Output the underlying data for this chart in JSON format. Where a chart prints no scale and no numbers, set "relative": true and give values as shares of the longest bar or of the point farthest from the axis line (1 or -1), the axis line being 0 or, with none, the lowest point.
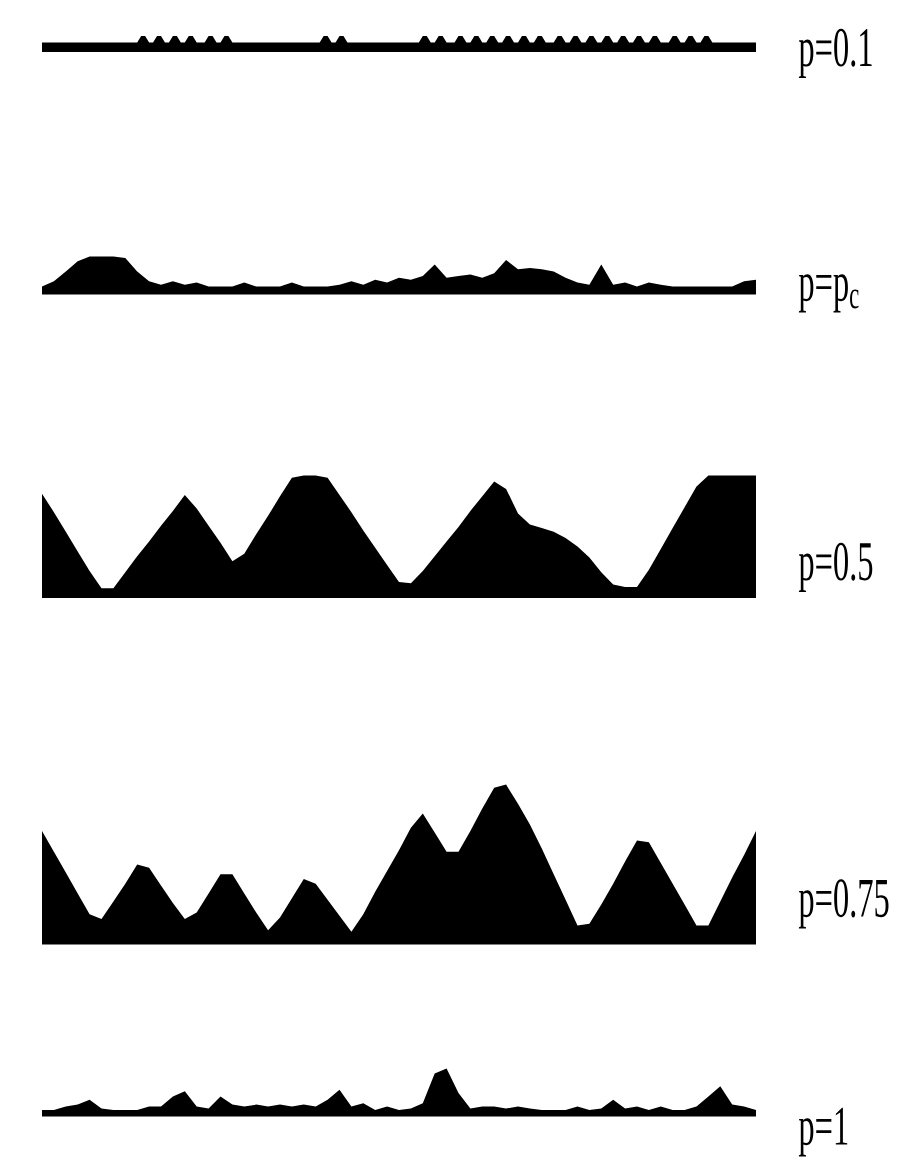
{
  "chart_data": [
    {
      "type": "area",
      "relative": true,
      "categories": [
        null,
        null,
        null,
        null,
        null,
        null,
        null,
        null,
        null,
        null,
        null,
        null,
        null,
        null,
        null,
        null,
        null,
        null,
        null,
        null,
        null,
        null,
        null,
        null,
        null,
        null,
        null,
        null,
        null,
        null,
        null,
        null,
        null,
        null,
        null,
        null,
        null,
        null,
        null,
        null,
        null,
        null,
        null,
        null,
        null,
        null,
        null,
        null,
        null,
        null,
        null,
        null,
        null,
        null,
        null,
        null,
        null,
        null,
        null,
        null,
        null,
        null,
        null,
        null,
        null,
        null,
        null,
        null,
        null,
        null,
        null,
        null,
        null,
        null,
        null,
        null,
        null,
        null,
        null,
        null,
        null,
        null,
        null,
        null,
        null,
        null,
        null,
        null,
        null,
        null,
        null,
        null,
        null,
        null,
        null,
        null,
        null,
        null,
        null,
        null,
        null,
        null,
        null,
        null,
        null,
        null,
        null,
        null,
        null,
        null,
        null,
        null,
        null,
        null,
        null,
        null,
        null,
        null,
        null,
        null,
        null,
        null,
        null,
        null,
        null,
        null,
        null,
        null,
        null,
        null,
        null,
        null,
        null,
        null,
        null,
        null,
        null,
        null,
        null,
        null,
        null,
        null,
        null,
        null,
        null,
        null,
        null,
        null,
        null,
        null,
        null,
        null,
        null,
        null,
        null,
        null,
        null,
        null,
        null,
        null,
        null,
        null,
        null,
        null,
        null,
        null,
        null,
        null,
        null,
        null,
        null,
        null,
        null,
        null,
        null,
        null,
        null,
        null,
        null,
        null,
        null
      ],
      "series": [
        {
          "name": "p=0.1",
          "color": "#000000",
          "values": [
            0.6,
            0.6,
            0.6,
            0.6,
            0.6,
            0.6,
            0.6,
            0.6,
            0.6,
            0.6,
            0.6,
            0.6,
            0.6,
            0.6,
            0.6,
            0.6,
            0.6,
            0.6,
            0.6,
            0.6,
            0.6,
            0.6,
            0.6,
            0.6,
            0.6,
            1,
            1,
            0.6,
            0.6,
            1,
            1,
            0.6,
            0.6,
            1,
            1,
            0.6,
            0.6,
            1,
            1,
            0.6,
            0.6,
            0.6,
            1,
            1,
            0.6,
            0.6,
            1,
            1,
            0.6,
            0.6,
            0.6,
            0.6,
            0.6,
            0.6,
            0.6,
            0.6,
            0.6,
            0.6,
            0.6,
            0.6,
            0.6,
            0.6,
            0.6,
            0.6,
            0.6,
            0.6,
            0.6,
            0.6,
            0.6,
            0.6,
            0.6,
            1,
            1,
            0.6,
            0.6,
            1,
            1,
            0.6,
            0.6,
            0.6,
            0.6,
            0.6,
            0.6,
            0.6,
            0.6,
            0.6,
            0.6,
            0.6,
            0.6,
            0.6,
            0.6,
            0.6,
            0.6,
            0.6,
            0.6,
            0.6,
            1,
            1,
            0.6,
            0.6,
            1,
            1,
            0.6,
            0.6,
            0.6,
            1,
            1,
            0.6,
            0.6,
            1,
            1,
            0.6,
            0.6,
            1,
            1,
            0.6,
            0.6,
            1,
            1,
            0.6,
            0.6,
            1,
            1,
            0.6,
            0.6,
            1,
            1,
            0.6,
            0.6,
            0.6,
            1,
            1,
            0.6,
            0.6,
            1,
            1,
            0.6,
            0.6,
            1,
            1,
            0.6,
            0.6,
            1,
            1,
            0.6,
            0.6,
            1,
            1,
            0.6,
            0.6,
            1,
            1,
            0.6,
            0.6,
            1,
            1,
            0.6,
            0.6,
            0.6,
            1,
            1,
            0.6,
            0.6,
            1,
            1,
            0.6,
            0.6,
            1,
            1,
            0.6,
            0.6,
            0.6,
            0.6,
            0.6,
            0.6,
            0.6,
            0.6,
            0.6,
            0.6,
            0.6,
            0.6
          ]
        }
      ]
    },
    {
      "type": "area",
      "relative": true,
      "categories": [
        null,
        null,
        null,
        null,
        null,
        null,
        null,
        null,
        null,
        null,
        null,
        null,
        null,
        null,
        null,
        null,
        null,
        null,
        null,
        null,
        null,
        null,
        null,
        null,
        null,
        null,
        null,
        null,
        null,
        null,
        null,
        null,
        null,
        null,
        null,
        null,
        null,
        null,
        null,
        null,
        null,
        null,
        null,
        null,
        null,
        null,
        null,
        null,
        null,
        null,
        null,
        null,
        null,
        null,
        null,
        null,
        null,
        null,
        null,
        null,
        null
      ],
      "series": [
        {
          "name": "p=p$_{c}$",
          "color": "#000000",
          "values": [
            0.21,
            0.35,
            0.61,
            0.88,
            1,
            1,
            1,
            0.96,
            0.61,
            0.35,
            0.26,
            0.35,
            0.26,
            0.32,
            0.21,
            0.21,
            0.21,
            0.32,
            0.21,
            0.21,
            0.21,
            0.32,
            0.21,
            0.21,
            0.21,
            0.26,
            0.35,
            0.26,
            0.39,
            0.32,
            0.44,
            0.39,
            0.49,
            0.79,
            0.44,
            0.49,
            0.53,
            0.44,
            0.56,
            0.91,
            0.67,
            0.7,
            0.67,
            0.61,
            0.44,
            0.32,
            0.26,
            0.79,
            0.26,
            0.32,
            0.21,
            0.32,
            0.26,
            0.21,
            0.21,
            0.21,
            0.21,
            0.21,
            0.21,
            0.35,
            0.39
          ]
        }
      ]
    },
    {
      "type": "area",
      "relative": true,
      "categories": [
        null,
        null,
        null,
        null,
        null,
        null,
        null,
        null,
        null,
        null,
        null,
        null,
        null,
        null,
        null,
        null,
        null,
        null,
        null,
        null,
        null,
        null,
        null,
        null,
        null,
        null,
        null,
        null,
        null,
        null,
        null,
        null,
        null,
        null,
        null,
        null,
        null,
        null,
        null,
        null,
        null,
        null,
        null,
        null,
        null,
        null,
        null,
        null,
        null,
        null,
        null,
        null,
        null,
        null,
        null,
        null,
        null,
        null,
        null,
        null,
        null
      ],
      "series": [
        {
          "name": "p=0.5",
          "color": "#000000",
          "values": [
            0.85,
            0.7,
            0.54,
            0.38,
            0.22,
            0.08,
            0.08,
            0.21,
            0.34,
            0.46,
            0.59,
            0.71,
            0.84,
            0.73,
            0.59,
            0.45,
            0.3,
            0.36,
            0.52,
            0.67,
            0.83,
            0.98,
            1,
            1,
            0.98,
            0.84,
            0.7,
            0.55,
            0.41,
            0.27,
            0.13,
            0.12,
            0.22,
            0.34,
            0.46,
            0.58,
            0.71,
            0.83,
            0.95,
            0.89,
            0.69,
            0.6,
            0.57,
            0.54,
            0.49,
            0.42,
            0.33,
            0.21,
            0.11,
            0.09,
            0.09,
            0.23,
            0.4,
            0.57,
            0.74,
            0.91,
            1,
            1,
            1,
            1,
            1
          ]
        }
      ]
    },
    {
      "type": "area",
      "relative": true,
      "categories": [
        null,
        null,
        null,
        null,
        null,
        null,
        null,
        null,
        null,
        null,
        null,
        null,
        null,
        null,
        null,
        null,
        null,
        null,
        null,
        null,
        null,
        null,
        null,
        null,
        null,
        null,
        null,
        null,
        null,
        null,
        null,
        null,
        null,
        null,
        null,
        null,
        null,
        null,
        null,
        null,
        null,
        null,
        null,
        null,
        null,
        null,
        null,
        null,
        null,
        null,
        null,
        null,
        null,
        null,
        null,
        null,
        null,
        null,
        null,
        null,
        null
      ],
      "series": [
        {
          "name": "p=0.75",
          "color": "#000000",
          "values": [
            0.71,
            0.58,
            0.45,
            0.32,
            0.19,
            0.16,
            0.27,
            0.38,
            0.5,
            0.48,
            0.37,
            0.26,
            0.16,
            0.2,
            0.32,
            0.44,
            0.44,
            0.32,
            0.2,
            0.09,
            0.17,
            0.29,
            0.41,
            0.38,
            0.28,
            0.18,
            0.08,
            0.19,
            0.33,
            0.46,
            0.59,
            0.73,
            0.82,
            0.7,
            0.58,
            0.58,
            0.71,
            0.85,
            0.98,
            1,
            0.88,
            0.75,
            0.6,
            0.44,
            0.28,
            0.12,
            0.13,
            0.25,
            0.38,
            0.52,
            0.65,
            0.64,
            0.51,
            0.38,
            0.25,
            0.12,
            0.12,
            0.27,
            0.42,
            0.56,
            0.71
          ]
        }
      ]
    },
    {
      "type": "area",
      "relative": true,
      "categories": [
        null,
        null,
        null,
        null,
        null,
        null,
        null,
        null,
        null,
        null,
        null,
        null,
        null,
        null,
        null,
        null,
        null,
        null,
        null,
        null,
        null,
        null,
        null,
        null,
        null,
        null,
        null,
        null,
        null,
        null,
        null,
        null,
        null,
        null,
        null,
        null,
        null,
        null,
        null,
        null,
        null,
        null,
        null,
        null,
        null,
        null,
        null,
        null,
        null,
        null,
        null,
        null,
        null,
        null,
        null,
        null,
        null,
        null,
        null,
        null,
        null
      ],
      "series": [
        {
          "name": "p=1",
          "color": "#000000",
          "values": [
            0.14,
            0.14,
            0.21,
            0.25,
            0.35,
            0.17,
            0.14,
            0.14,
            0.14,
            0.21,
            0.21,
            0.42,
            0.53,
            0.21,
            0.17,
            0.42,
            0.25,
            0.21,
            0.25,
            0.21,
            0.25,
            0.21,
            0.25,
            0.21,
            0.35,
            0.56,
            0.21,
            0.28,
            0.14,
            0.21,
            0.14,
            0.17,
            0.28,
            0.9,
            1,
            0.49,
            0.17,
            0.21,
            0.21,
            0.17,
            0.21,
            0.17,
            0.14,
            0.14,
            0.14,
            0.21,
            0.14,
            0.17,
            0.35,
            0.17,
            0.21,
            0.14,
            0.21,
            0.14,
            0.14,
            0.21,
            0.42,
            0.63,
            0.25,
            0.21,
            0.14
          ]
        }
      ]
    }
  ]
}
